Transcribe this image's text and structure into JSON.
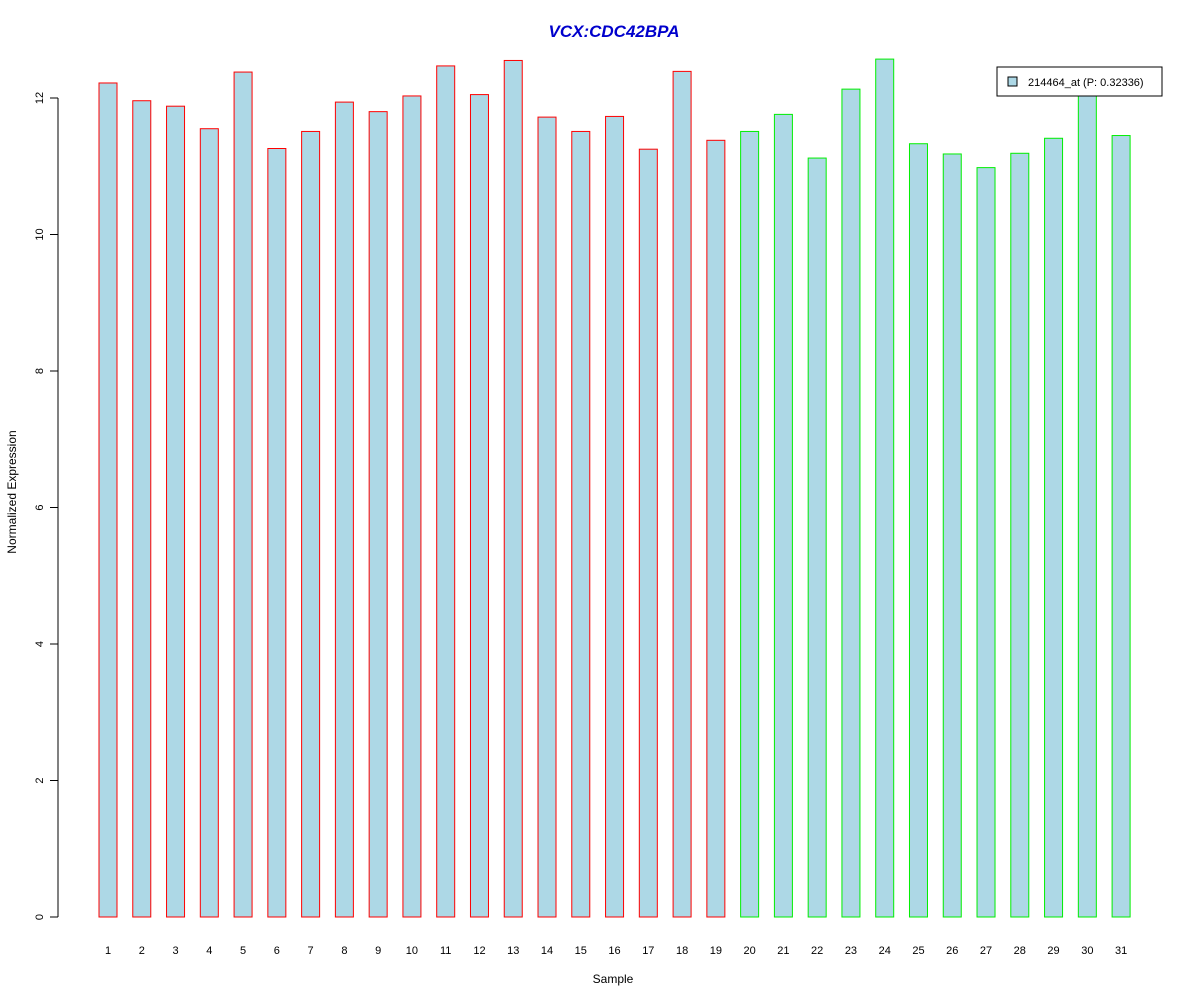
{
  "chart_data": {
    "type": "bar",
    "title": "VCX:CDC42BPA",
    "xlabel": "Sample",
    "ylabel": "Normalized Expression",
    "categories": [
      "1",
      "2",
      "3",
      "4",
      "5",
      "6",
      "7",
      "8",
      "9",
      "10",
      "11",
      "12",
      "13",
      "14",
      "15",
      "16",
      "17",
      "18",
      "19",
      "20",
      "21",
      "22",
      "23",
      "24",
      "25",
      "26",
      "27",
      "28",
      "29",
      "30",
      "31"
    ],
    "series": [
      {
        "name": "214464_at (P: 0.32336)",
        "values": [
          12.22,
          11.96,
          11.88,
          11.55,
          12.38,
          11.26,
          11.51,
          11.94,
          11.8,
          12.03,
          12.47,
          12.05,
          12.55,
          11.72,
          11.51,
          11.73,
          11.25,
          12.39,
          11.38,
          11.51,
          11.76,
          11.12,
          12.13,
          12.57,
          11.33,
          11.18,
          10.98,
          11.19,
          11.41,
          12.09,
          11.45
        ]
      }
    ],
    "group_border_colors": [
      "#ff0000",
      "#ff0000",
      "#ff0000",
      "#ff0000",
      "#ff0000",
      "#ff0000",
      "#ff0000",
      "#ff0000",
      "#ff0000",
      "#ff0000",
      "#ff0000",
      "#ff0000",
      "#ff0000",
      "#ff0000",
      "#ff0000",
      "#ff0000",
      "#ff0000",
      "#ff0000",
      "#ff0000",
      "#00ee00",
      "#00ee00",
      "#00ee00",
      "#00ee00",
      "#00ee00",
      "#00ee00",
      "#00ee00",
      "#00ee00",
      "#00ee00",
      "#00ee00",
      "#00ee00",
      "#00ee00"
    ],
    "ylim": [
      0,
      12.6
    ],
    "yticks": [
      0,
      2,
      4,
      6,
      8,
      10,
      12
    ],
    "grid": false,
    "legend_position": "top-right",
    "colors": {
      "bar_fill": "#add8e6",
      "title": "#0000cc",
      "axis": "#000000"
    }
  }
}
